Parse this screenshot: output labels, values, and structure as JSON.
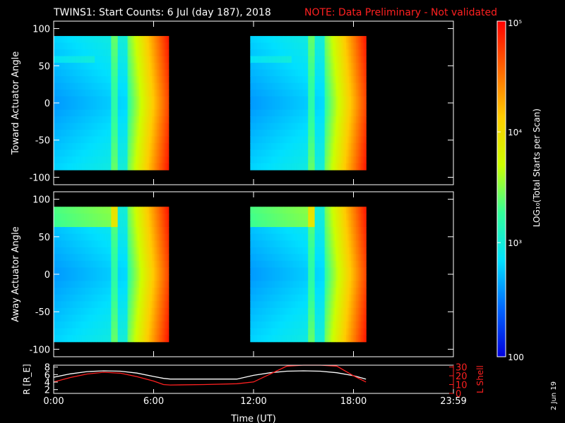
{
  "chart_data": [
    {
      "type": "heatmap",
      "title": "TWINS1: Start Counts:  6 Jul (day 187), 2018",
      "note": "NOTE: Data Preliminary - Not validated",
      "ylabel": "Toward Actuator Angle",
      "ylim": [
        -110,
        110
      ],
      "yticks": [
        "100",
        "50",
        "0",
        "-50",
        "-100"
      ],
      "ytick_values": [
        100,
        50,
        0,
        -50,
        -100
      ],
      "xlim_hours": [
        0,
        24
      ],
      "data_blocks_hours": [
        [
          0,
          6.9
        ],
        [
          11.8,
          18.75
        ]
      ],
      "color_scale": "log"
    },
    {
      "type": "heatmap",
      "ylabel": "Away Actuator Angle",
      "ylim": [
        -110,
        110
      ],
      "yticks": [
        "100",
        "50",
        "0",
        "-50",
        "-100"
      ],
      "ytick_values": [
        100,
        50,
        0,
        -50,
        -100
      ],
      "xlim_hours": [
        0,
        24
      ],
      "data_blocks_hours": [
        [
          0,
          6.9
        ],
        [
          11.8,
          18.75
        ]
      ],
      "color_scale": "log"
    },
    {
      "type": "line",
      "ylabel_left": "R [R_E]",
      "ylabel_right": "L Shell",
      "xlabel": "Time (UT)",
      "xticks": [
        "0:00",
        "6:00",
        "12:00",
        "18:00",
        "23:59"
      ],
      "xtick_hours": [
        0,
        6,
        12,
        18,
        24
      ],
      "yticks_left": [
        "8",
        "6",
        "4",
        "2"
      ],
      "yticks_left_values": [
        8,
        6,
        4,
        2
      ],
      "yticks_right": [
        "30",
        "20",
        "10",
        "0"
      ],
      "yticks_right_values": [
        30,
        20,
        10,
        0
      ],
      "ylim_left": [
        1,
        8.5
      ],
      "ylim_right": [
        0,
        32
      ],
      "series": [
        {
          "axis": "left",
          "color": "#ffffff",
          "x": [
            0,
            1,
            2,
            3,
            4,
            5,
            6,
            6.6,
            7,
            9,
            11,
            12,
            13,
            14,
            15,
            16,
            17,
            18,
            18.75
          ],
          "y": [
            5.3,
            6.2,
            6.8,
            7.0,
            6.9,
            6.4,
            5.5,
            5.0,
            4.8,
            4.8,
            4.8,
            5.8,
            6.5,
            6.9,
            7.0,
            6.9,
            6.5,
            5.7,
            4.8
          ]
        },
        {
          "axis": "right",
          "color": "#ff2020",
          "x": [
            0,
            1,
            2,
            3,
            4,
            5,
            6,
            6.6,
            7,
            9,
            11,
            12,
            13,
            14,
            15,
            16,
            17,
            18,
            18.75
          ],
          "y": [
            13,
            18,
            22,
            24,
            23,
            19,
            14,
            10,
            9.5,
            10,
            11,
            13,
            22,
            31,
            32,
            32,
            31,
            20,
            13
          ]
        }
      ]
    }
  ],
  "colorbar": {
    "label": "LOG₁₀(Total Starts per Scan)",
    "ticks": [
      "10⁵",
      "10⁴",
      "10³",
      "100"
    ],
    "stops": [
      "#ff0000",
      "#ff6600",
      "#ffcc00",
      "#ccff00",
      "#33ff99",
      "#00e0ff",
      "#0066ff",
      "#0000dd"
    ]
  },
  "footer_date": "2 Jun 19"
}
